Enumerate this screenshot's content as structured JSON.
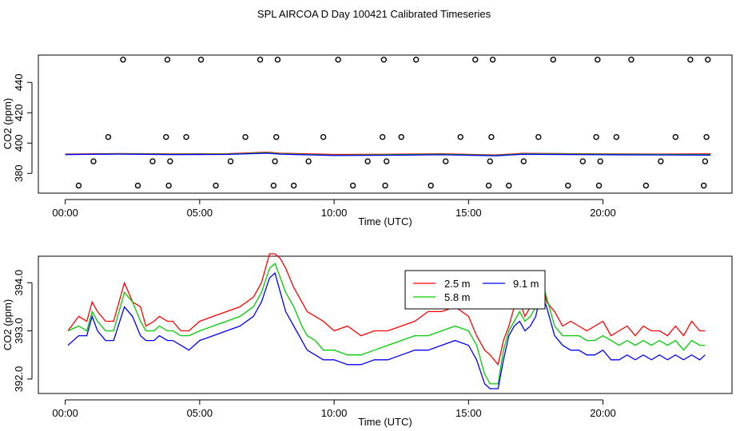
{
  "title": "SPL AIRCOA D  Day 100421  Calibrated Timeseries",
  "chart_data": [
    {
      "type": "scatter+line",
      "xlabel": "Time (UTC)",
      "ylabel": "CO2 (ppm)",
      "x_ticks": [
        0,
        5,
        10,
        15,
        20
      ],
      "x_tick_labels": [
        "00:00",
        "05:00",
        "10:00",
        "15:00",
        "20:00"
      ],
      "y_ticks": [
        380,
        400,
        420,
        440
      ],
      "y_tick_labels": [
        "380",
        "400",
        "420",
        "440"
      ],
      "xlim": [
        -1,
        24.8
      ],
      "ylim": [
        367,
        458
      ],
      "grid": false,
      "points_x": [
        0.5,
        1.05,
        1.6,
        2.15,
        2.7,
        3.25,
        3.75,
        3.8,
        3.85,
        3.9,
        4.5,
        5.05,
        5.6,
        6.15,
        6.7,
        7.25,
        7.75,
        7.8,
        7.85,
        7.9,
        8.5,
        9.05,
        9.6,
        10.15,
        10.7,
        11.25,
        11.8,
        11.85,
        11.9,
        11.95,
        12.5,
        13.05,
        13.6,
        14.15,
        14.7,
        15.25,
        15.75,
        15.8,
        15.85,
        15.9,
        16.5,
        17.05,
        17.6,
        18.15,
        18.7,
        19.25,
        19.75,
        19.8,
        19.85,
        19.9,
        20.5,
        21.05,
        21.6,
        22.15,
        22.7,
        23.25,
        23.75,
        23.8,
        23.85,
        23.9
      ],
      "points_y": [
        372,
        388,
        404,
        455,
        372,
        388,
        404,
        455,
        372,
        388,
        404,
        455,
        372,
        388,
        404,
        455,
        372,
        388,
        404,
        455,
        372,
        388,
        404,
        455,
        372,
        388,
        404,
        455,
        372,
        388,
        404,
        455,
        372,
        388,
        404,
        455,
        372,
        388,
        404,
        455,
        372,
        388,
        404,
        455,
        372,
        388,
        404,
        455,
        372,
        388,
        404,
        455,
        372,
        388,
        404,
        455,
        372,
        388,
        404,
        455
      ],
      "series": [
        {
          "color": "#ff0000",
          "x": [
            0,
            2,
            4,
            6,
            7.5,
            8,
            10,
            12,
            14,
            16,
            17,
            20,
            22,
            24
          ],
          "values": [
            392.8,
            393.1,
            392.9,
            393.0,
            394.0,
            393.3,
            392.5,
            392.6,
            393.0,
            392.2,
            393.2,
            392.9,
            392.8,
            392.9
          ]
        },
        {
          "color": "#00cc00",
          "x": [
            0,
            2,
            4,
            6,
            7.5,
            8,
            10,
            12,
            14,
            16,
            17,
            20,
            22,
            24
          ],
          "values": [
            392.5,
            392.9,
            392.6,
            392.7,
            393.6,
            393.0,
            392.0,
            392.3,
            392.6,
            391.9,
            392.9,
            392.6,
            392.5,
            392.4
          ]
        },
        {
          "color": "#0000ff",
          "x": [
            0,
            2,
            4,
            6,
            7.5,
            8,
            10,
            12,
            14,
            16,
            17,
            20,
            22,
            24
          ],
          "values": [
            392.4,
            392.7,
            392.4,
            392.5,
            393.3,
            392.7,
            391.8,
            392.0,
            392.3,
            391.6,
            392.6,
            392.3,
            392.2,
            392.1
          ]
        }
      ]
    },
    {
      "type": "line",
      "xlabel": "Time (UTC)",
      "ylabel": "CO2 (ppm)",
      "x_ticks": [
        0,
        5,
        10,
        15,
        20
      ],
      "x_tick_labels": [
        "00:00",
        "05:00",
        "10:00",
        "15:00",
        "20:00"
      ],
      "y_ticks": [
        392.0,
        393.0,
        394.0
      ],
      "y_tick_labels": [
        "392.0",
        "393.0",
        "394.0"
      ],
      "xlim": [
        -1,
        24.8
      ],
      "ylim": [
        391.7,
        394.55
      ],
      "grid": false,
      "legend": {
        "placement": "top-right",
        "entries": [
          {
            "label": "2.5 m",
            "color": "#ff0000"
          },
          {
            "label": "9.1 m",
            "color": "#0000ff"
          },
          {
            "label": "5.8 m",
            "color": "#00cc00"
          }
        ]
      },
      "series": [
        {
          "name": "2.5 m",
          "color": "#ff0000",
          "x": [
            0.1,
            0.5,
            0.8,
            1.0,
            1.2,
            1.5,
            1.8,
            2.2,
            2.5,
            2.8,
            3.0,
            3.3,
            3.5,
            3.8,
            4.0,
            4.3,
            4.6,
            5.0,
            5.5,
            6.0,
            6.5,
            7.0,
            7.3,
            7.6,
            7.8,
            8.0,
            8.2,
            8.5,
            8.8,
            9.0,
            9.3,
            9.6,
            10.0,
            10.5,
            11.0,
            11.5,
            12.0,
            12.5,
            13.0,
            13.5,
            14.0,
            14.5,
            15.0,
            15.3,
            15.6,
            15.8,
            16.1,
            16.3,
            16.5,
            16.7,
            16.9,
            17.1,
            17.3,
            17.5,
            17.7,
            17.9,
            18.2,
            18.5,
            18.8,
            19.1,
            19.4,
            19.7,
            20.0,
            20.3,
            20.6,
            20.9,
            21.2,
            21.5,
            21.8,
            22.1,
            22.4,
            22.7,
            23.0,
            23.3,
            23.6,
            23.8
          ],
          "values": [
            393.0,
            393.3,
            393.2,
            393.6,
            393.4,
            393.2,
            393.2,
            394.0,
            393.6,
            393.5,
            393.1,
            393.2,
            393.3,
            393.2,
            393.2,
            393.0,
            393.0,
            393.2,
            393.3,
            393.4,
            393.5,
            393.7,
            394.0,
            394.6,
            394.6,
            394.5,
            394.3,
            393.9,
            393.6,
            393.4,
            393.3,
            393.2,
            393.0,
            393.1,
            392.9,
            393.0,
            393.0,
            393.1,
            393.2,
            393.4,
            393.4,
            393.5,
            393.3,
            392.9,
            392.6,
            392.5,
            392.3,
            392.8,
            393.1,
            393.5,
            393.6,
            393.3,
            393.5,
            393.7,
            394.2,
            393.6,
            393.4,
            393.1,
            393.2,
            393.1,
            393.0,
            393.1,
            393.2,
            392.9,
            393.0,
            393.1,
            392.9,
            393.1,
            393.0,
            393.0,
            392.9,
            393.1,
            392.9,
            393.2,
            393.0,
            393.0
          ]
        },
        {
          "name": "5.8 m",
          "color": "#00cc00",
          "x": [
            0.1,
            0.5,
            0.8,
            1.0,
            1.2,
            1.5,
            1.8,
            2.2,
            2.5,
            2.8,
            3.0,
            3.3,
            3.5,
            3.8,
            4.0,
            4.3,
            4.6,
            5.0,
            5.5,
            6.0,
            6.5,
            7.0,
            7.3,
            7.6,
            7.8,
            8.0,
            8.2,
            8.5,
            8.8,
            9.0,
            9.3,
            9.6,
            10.0,
            10.5,
            11.0,
            11.5,
            12.0,
            12.5,
            13.0,
            13.5,
            14.0,
            14.5,
            15.0,
            15.3,
            15.6,
            15.8,
            16.1,
            16.3,
            16.5,
            16.7,
            16.9,
            17.1,
            17.3,
            17.5,
            17.7,
            17.9,
            18.2,
            18.5,
            18.8,
            19.1,
            19.4,
            19.7,
            20.0,
            20.3,
            20.6,
            20.9,
            21.2,
            21.5,
            21.8,
            22.1,
            22.4,
            22.7,
            23.0,
            23.3,
            23.6,
            23.8
          ],
          "values": [
            393.0,
            393.1,
            393.0,
            393.4,
            393.2,
            393.0,
            393.0,
            393.8,
            393.6,
            393.2,
            393.0,
            393.0,
            393.1,
            393.0,
            393.0,
            392.9,
            392.9,
            393.0,
            393.1,
            393.2,
            393.3,
            393.5,
            393.8,
            394.3,
            394.4,
            394.1,
            393.8,
            393.5,
            393.1,
            392.9,
            392.8,
            392.6,
            392.6,
            392.5,
            392.5,
            392.6,
            392.7,
            392.8,
            392.9,
            392.9,
            393.0,
            393.1,
            393.0,
            392.7,
            392.1,
            391.9,
            391.9,
            392.6,
            393.0,
            393.2,
            393.4,
            393.2,
            393.3,
            393.5,
            394.1,
            393.7,
            393.1,
            392.9,
            392.9,
            392.9,
            392.8,
            392.8,
            392.9,
            392.8,
            392.7,
            392.8,
            392.7,
            392.8,
            392.7,
            392.8,
            392.7,
            392.8,
            392.6,
            392.8,
            392.7,
            392.7
          ]
        },
        {
          "name": "9.1 m",
          "color": "#0000ff",
          "x": [
            0.1,
            0.5,
            0.8,
            1.0,
            1.2,
            1.5,
            1.8,
            2.2,
            2.5,
            2.8,
            3.0,
            3.3,
            3.5,
            3.8,
            4.0,
            4.3,
            4.6,
            5.0,
            5.5,
            6.0,
            6.5,
            7.0,
            7.3,
            7.6,
            7.8,
            8.0,
            8.2,
            8.5,
            8.8,
            9.0,
            9.3,
            9.6,
            10.0,
            10.5,
            11.0,
            11.5,
            12.0,
            12.5,
            13.0,
            13.5,
            14.0,
            14.5,
            15.0,
            15.3,
            15.6,
            15.8,
            16.1,
            16.3,
            16.5,
            16.7,
            16.9,
            17.1,
            17.3,
            17.5,
            17.7,
            17.9,
            18.2,
            18.5,
            18.8,
            19.1,
            19.4,
            19.7,
            20.0,
            20.3,
            20.6,
            20.9,
            21.2,
            21.5,
            21.8,
            22.1,
            22.4,
            22.7,
            23.0,
            23.3,
            23.6,
            23.8
          ],
          "values": [
            392.7,
            392.9,
            392.9,
            393.3,
            393.0,
            392.8,
            392.8,
            393.5,
            393.3,
            392.9,
            392.8,
            392.8,
            392.9,
            392.8,
            392.8,
            392.7,
            392.6,
            392.8,
            392.9,
            393.0,
            393.1,
            393.3,
            393.6,
            394.1,
            394.2,
            393.8,
            393.4,
            393.1,
            392.8,
            392.6,
            392.5,
            392.4,
            392.4,
            392.3,
            392.3,
            392.4,
            392.4,
            392.5,
            392.6,
            392.6,
            392.7,
            392.8,
            392.7,
            392.4,
            391.9,
            391.8,
            391.8,
            392.4,
            392.9,
            393.1,
            393.2,
            393.0,
            393.1,
            393.3,
            393.8,
            393.5,
            392.9,
            392.7,
            392.6,
            392.6,
            392.5,
            392.5,
            392.6,
            392.4,
            392.4,
            392.5,
            392.4,
            392.5,
            392.4,
            392.5,
            392.4,
            392.5,
            392.4,
            392.5,
            392.4,
            392.5
          ]
        }
      ]
    }
  ]
}
